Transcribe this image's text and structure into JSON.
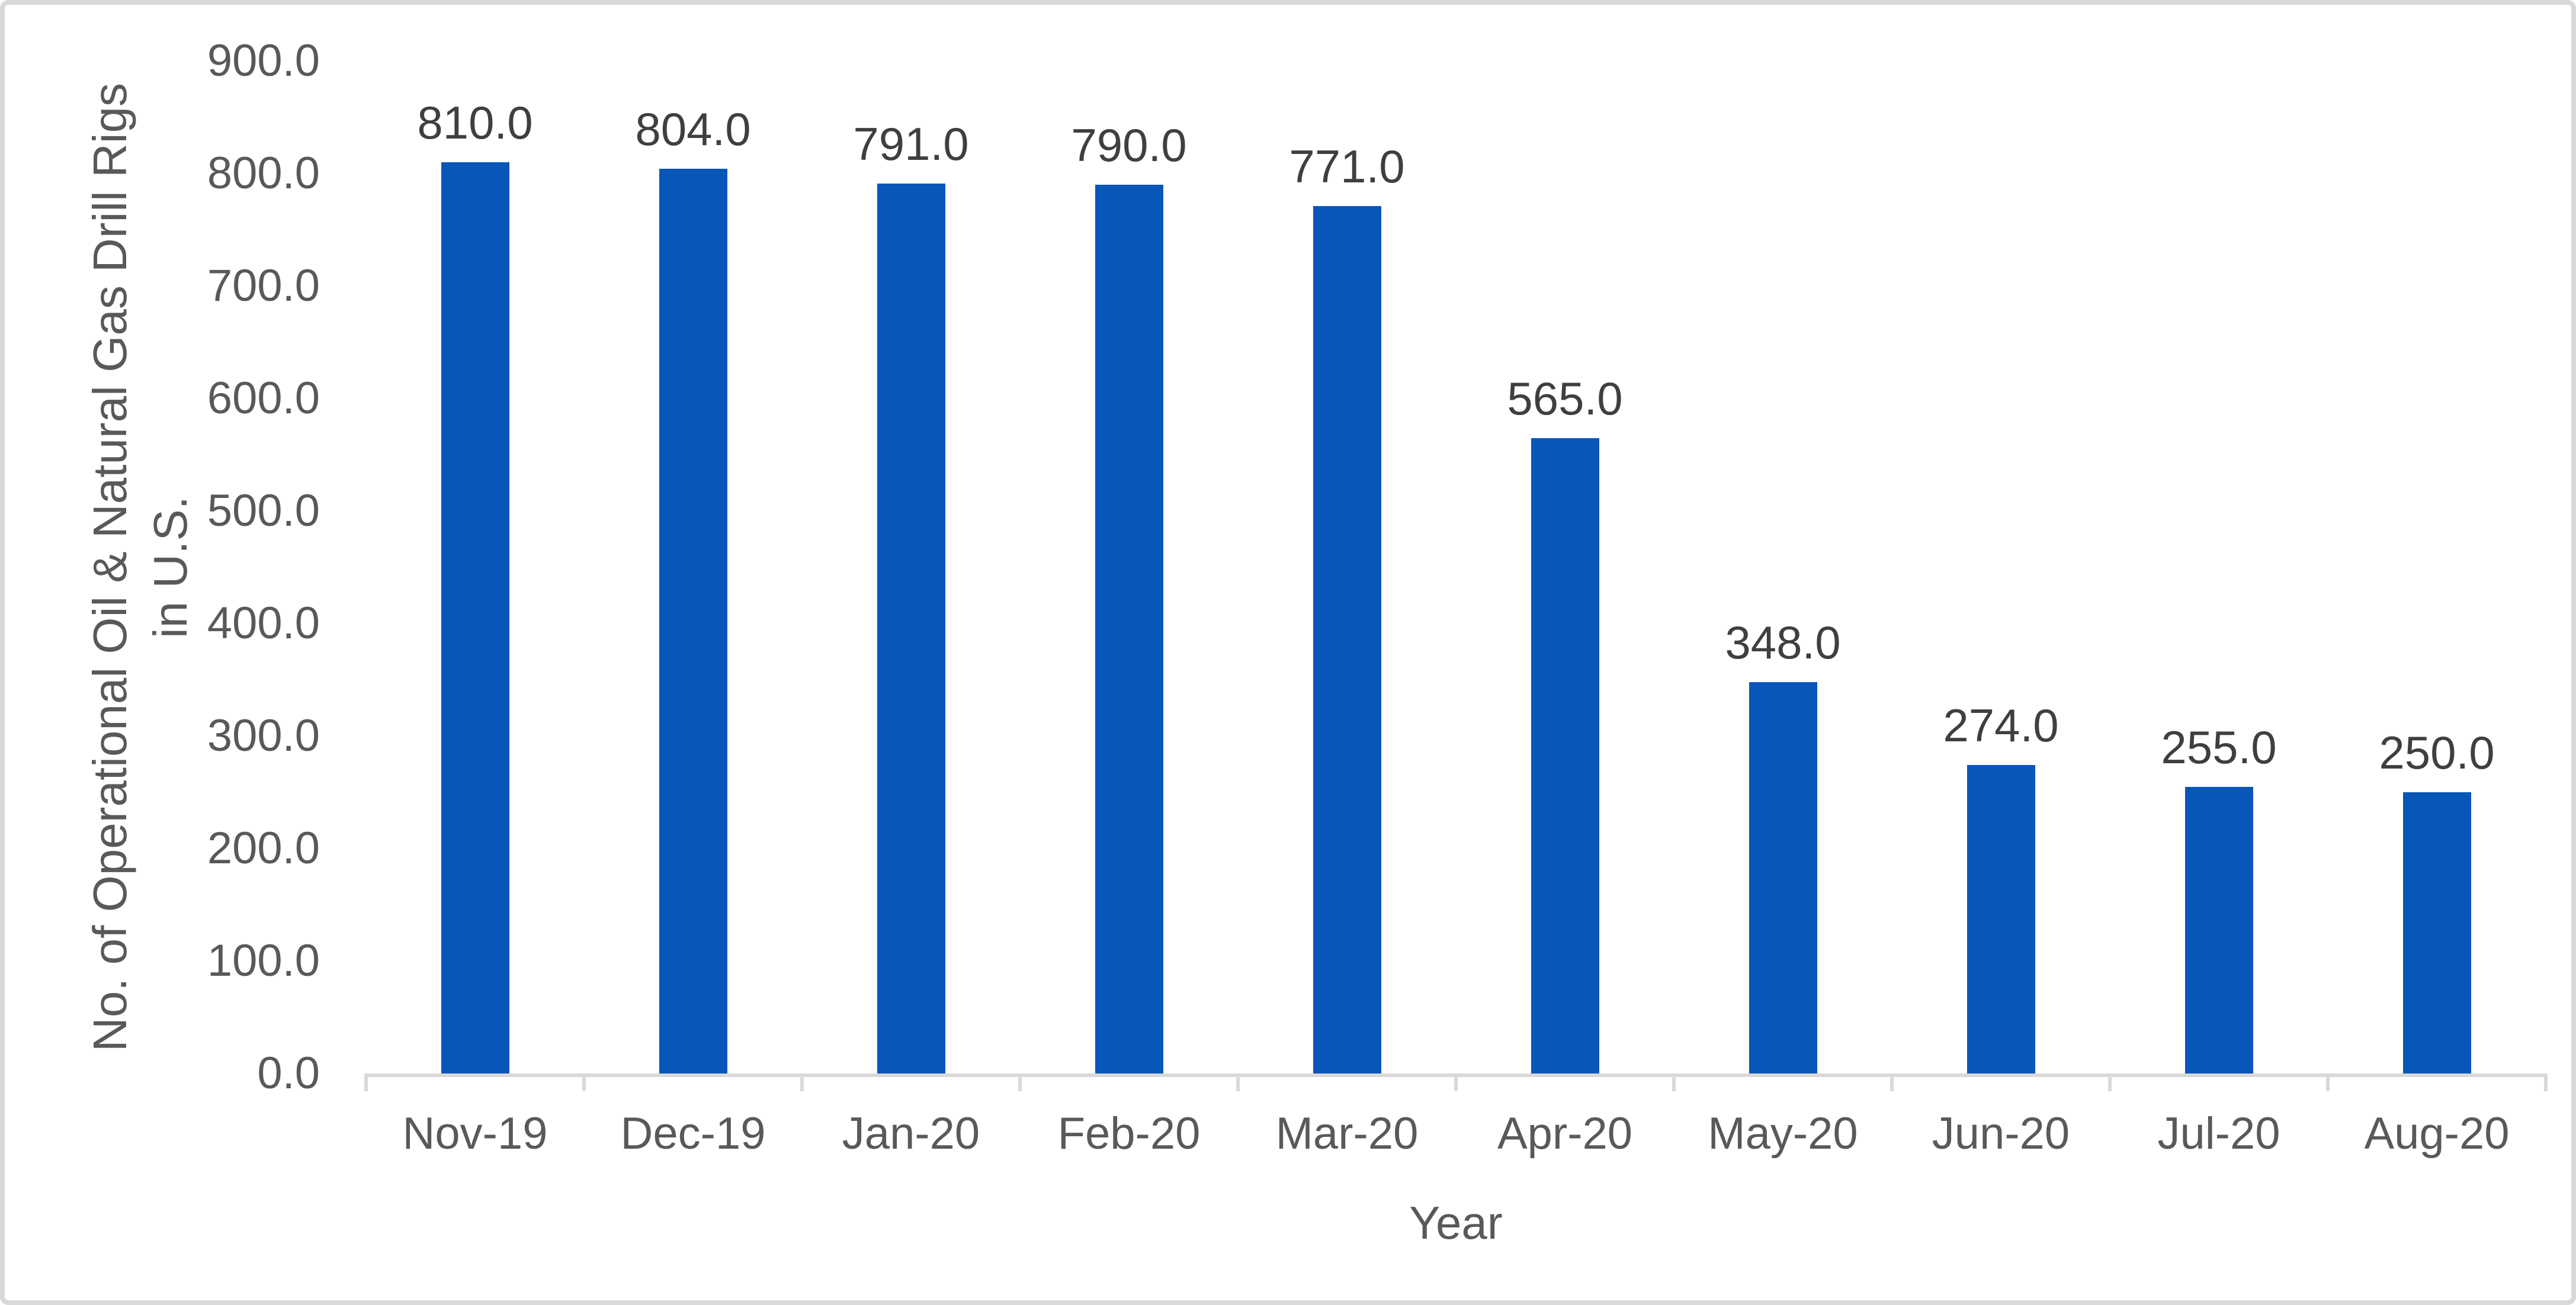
{
  "chart_data": {
    "type": "bar",
    "title": "",
    "categories": [
      "Nov-19",
      "Dec-19",
      "Jan-20",
      "Feb-20",
      "Mar-20",
      "Apr-20",
      "May-20",
      "Jun-20",
      "Jul-20",
      "Aug-20"
    ],
    "values": [
      810,
      804,
      791,
      790,
      771,
      565,
      348,
      274,
      255,
      250
    ],
    "data_labels": [
      "810.0",
      "804.0",
      "791.0",
      "790.0",
      "771.0",
      "565.0",
      "348.0",
      "274.0",
      "255.0",
      "250.0"
    ],
    "xlabel": "Year",
    "ylabel_line1": "No. of Operational Oil & Natural Gas Drill Rigs",
    "ylabel_line2": "in U.S.",
    "ylim": [
      0,
      900
    ],
    "ytick_step": 100,
    "ytick_labels": [
      "0.0",
      "100.0",
      "200.0",
      "300.0",
      "400.0",
      "500.0",
      "600.0",
      "700.0",
      "800.0",
      "900.0"
    ],
    "grid": false,
    "legend": false,
    "bar_color": "#0956B9",
    "axis_color": "#D9D9D9",
    "tick_text_color": "#595959",
    "data_label_color": "#3F3F3F"
  }
}
